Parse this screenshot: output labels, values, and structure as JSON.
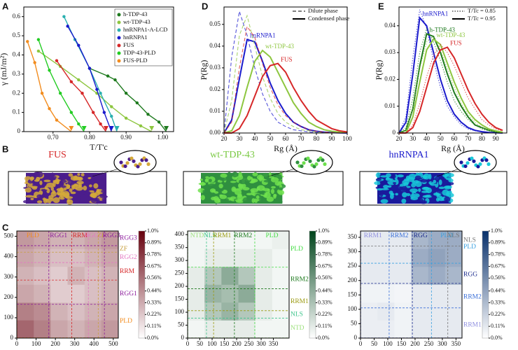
{
  "chart_data": [
    {
      "type": "scatter",
      "panel": "A",
      "xlabel": "T/T'c",
      "ylabel": "γ (mJ/m²)",
      "xlim": [
        0.62,
        1.03
      ],
      "xticks": [
        {
          "value": 0.7,
          "label": "0.70"
        },
        {
          "value": 0.8,
          "label": "0.80"
        },
        {
          "value": 0.9,
          "label": "0.90"
        },
        {
          "value": 1.0,
          "label": "1.00"
        }
      ],
      "ylim": [
        0,
        0.65
      ],
      "yticks": [
        0,
        0.1,
        0.2,
        0.3,
        0.4,
        0.5,
        0.6
      ],
      "series": [
        {
          "name": "h-TDP-43",
          "color": "#1e7a1e",
          "x": [
            0.8,
            0.85,
            0.87,
            0.9,
            0.93,
            0.96,
            0.99
          ],
          "values": [
            0.33,
            0.29,
            0.27,
            0.2,
            0.15,
            0.09,
            0.05
          ],
          "tc": 1.01
        },
        {
          "name": "wt-TDP-43",
          "color": "#8dc63f",
          "x": [
            0.66,
            0.72,
            0.77,
            0.82,
            0.86,
            0.9,
            0.94
          ],
          "values": [
            0.42,
            0.34,
            0.27,
            0.2,
            0.13,
            0.07,
            0.03
          ],
          "tc": 0.97
        },
        {
          "name": "hnRNPA1-A-LCD",
          "color": "#2ab0b0",
          "x": [
            0.73,
            0.76,
            0.8,
            0.83,
            0.86
          ],
          "values": [
            0.6,
            0.48,
            0.33,
            0.2,
            0.08
          ],
          "tc": 0.875
        },
        {
          "name": "hnRNPA1",
          "color": "#1a1acc",
          "x": [
            0.74,
            0.77,
            0.8,
            0.82,
            0.84
          ],
          "values": [
            0.55,
            0.45,
            0.33,
            0.22,
            0.1
          ],
          "tc": 0.86
        },
        {
          "name": "FUS",
          "color": "#d62728",
          "x": [
            0.71,
            0.75,
            0.78,
            0.81,
            0.83
          ],
          "values": [
            0.37,
            0.26,
            0.2,
            0.1,
            0.04
          ],
          "tc": 0.845
        },
        {
          "name": "TDP-43-PLD",
          "color": "#22cc22",
          "x": [
            0.66,
            0.69,
            0.72,
            0.75,
            0.77
          ],
          "values": [
            0.48,
            0.32,
            0.2,
            0.1,
            0.04
          ],
          "tc": 0.785
        },
        {
          "name": "FUS-PLD",
          "color": "#f28c1e",
          "x": [
            0.63,
            0.65,
            0.67,
            0.69,
            0.71
          ],
          "values": [
            0.47,
            0.36,
            0.2,
            0.12,
            0.06
          ],
          "tc": 0.75
        }
      ]
    },
    {
      "type": "line",
      "panel": "D",
      "xlabel": "Rg (Å)",
      "ylabel": "P(Rg)",
      "alt_style": "dashed",
      "legend": [
        "Dilute phase",
        "Condensed phase"
      ],
      "xlim": [
        20,
        100
      ],
      "xticks": [
        20,
        30,
        40,
        50,
        60,
        70,
        80,
        90,
        100
      ],
      "ylim": [
        0,
        0.058
      ],
      "yticks": [
        {
          "value": 0,
          "label": "0.00"
        },
        0.01,
        0.02,
        0.03,
        0.04,
        0.05
      ],
      "x": [
        20,
        25,
        30,
        35,
        40,
        45,
        50,
        55,
        60,
        65,
        70,
        75,
        80,
        85,
        90,
        95,
        100
      ],
      "series": [
        {
          "name": "hnRNPA1",
          "color": "#1a1acc",
          "values": [
            0,
            0.006,
            0.025,
            0.043,
            0.042,
            0.033,
            0.023,
            0.015,
            0.009,
            0.005,
            0.003,
            0.0015,
            0.0008,
            0.0004,
            0.0002,
            0.0001,
            0
          ],
          "alt_values": [
            0,
            0.035,
            0.056,
            0.045,
            0.03,
            0.018,
            0.01,
            0.005,
            0.003,
            0.0015,
            0.001,
            0.0005,
            0.0002,
            0.0001,
            0,
            0,
            0
          ]
        },
        {
          "name": "wt-TDP-43",
          "color": "#8dc63f",
          "values": [
            0,
            0.001,
            0.008,
            0.021,
            0.033,
            0.038,
            0.035,
            0.028,
            0.021,
            0.014,
            0.009,
            0.005,
            0.003,
            0.0015,
            0.0008,
            0.0004,
            0.0002
          ],
          "alt_values": [
            0,
            0.015,
            0.045,
            0.054,
            0.04,
            0.026,
            0.016,
            0.009,
            0.005,
            0.003,
            0.0015,
            0.001,
            0.0005,
            0.0002,
            0.0001,
            0,
            0
          ]
        },
        {
          "name": "FUS",
          "color": "#d62728",
          "values": [
            0,
            0,
            0.002,
            0.008,
            0.017,
            0.026,
            0.031,
            0.032,
            0.028,
            0.021,
            0.015,
            0.01,
            0.006,
            0.004,
            0.002,
            0.001,
            0.0005
          ],
          "alt_values": [
            0,
            0.005,
            0.03,
            0.049,
            0.044,
            0.032,
            0.021,
            0.013,
            0.008,
            0.005,
            0.003,
            0.0015,
            0.0008,
            0.0004,
            0.0002,
            0.0001,
            0
          ]
        }
      ]
    },
    {
      "type": "line",
      "panel": "E",
      "xlabel": "Rg (Å)",
      "ylabel": "P(Rg)",
      "alt_style": "dotted",
      "legend": [
        "T/Tc = 0.85",
        "T/Tc = 0.95"
      ],
      "xlim": [
        20,
        98
      ],
      "xticks": [
        20,
        30,
        40,
        50,
        60,
        70,
        80,
        90
      ],
      "ylim": [
        0,
        0.047
      ],
      "yticks": [
        0,
        0.01,
        0.02,
        0.03,
        0.04
      ],
      "x": [
        20,
        25,
        30,
        35,
        40,
        45,
        50,
        55,
        60,
        65,
        70,
        75,
        80,
        85,
        90,
        95
      ],
      "series": [
        {
          "name": "hnRNPA1",
          "color": "#1a1acc",
          "values": [
            0,
            0.004,
            0.022,
            0.043,
            0.04,
            0.03,
            0.02,
            0.012,
            0.007,
            0.004,
            0.002,
            0.001,
            0.0005,
            0.0002,
            0.0001,
            0
          ],
          "alt_values": [
            0,
            0.006,
            0.028,
            0.046,
            0.039,
            0.027,
            0.017,
            0.01,
            0.006,
            0.003,
            0.0015,
            0.0008,
            0.0004,
            0.0002,
            0.0001,
            0
          ]
        },
        {
          "name": "h-TDP-43",
          "color": "#1e7a1e",
          "values": [
            0,
            0.001,
            0.009,
            0.025,
            0.037,
            0.036,
            0.03,
            0.022,
            0.015,
            0.01,
            0.006,
            0.003,
            0.002,
            0.001,
            0.0005,
            0.0002
          ],
          "alt_values": [
            0,
            0.002,
            0.013,
            0.03,
            0.039,
            0.034,
            0.027,
            0.019,
            0.012,
            0.008,
            0.005,
            0.003,
            0.0015,
            0.0008,
            0.0004,
            0.0002
          ]
        },
        {
          "name": "wt-TDP-43",
          "color": "#8dc63f",
          "values": [
            0,
            0,
            0.006,
            0.019,
            0.031,
            0.035,
            0.033,
            0.026,
            0.019,
            0.013,
            0.008,
            0.005,
            0.003,
            0.0015,
            0.0008,
            0.0003
          ],
          "alt_values": [
            0,
            0.001,
            0.009,
            0.024,
            0.034,
            0.036,
            0.031,
            0.024,
            0.017,
            0.011,
            0.007,
            0.004,
            0.002,
            0.001,
            0.0005,
            0.0002
          ]
        },
        {
          "name": "FUS",
          "color": "#d62728",
          "values": [
            0,
            0,
            0.002,
            0.008,
            0.017,
            0.026,
            0.031,
            0.032,
            0.028,
            0.022,
            0.016,
            0.011,
            0.007,
            0.004,
            0.002,
            0.001
          ],
          "alt_values": [
            0,
            0,
            0.003,
            0.011,
            0.021,
            0.029,
            0.033,
            0.03,
            0.025,
            0.019,
            0.013,
            0.009,
            0.005,
            0.003,
            0.0015,
            0.0008
          ]
        }
      ]
    },
    {
      "type": "heatmap",
      "panel": "C",
      "cmap": [
        "#ffffff",
        "#67000d"
      ],
      "xlim": [
        0,
        526
      ],
      "ylim": [
        0,
        526
      ],
      "xticks": [
        0,
        100,
        200,
        300,
        400,
        500
      ],
      "yticks": [
        0,
        100,
        200,
        300,
        400,
        500
      ],
      "bins": [
        0,
        88,
        175,
        263,
        351,
        438,
        526
      ],
      "values": [
        [
          0.6,
          0.5,
          0.35,
          0.3,
          0.35,
          0.4
        ],
        [
          0.5,
          0.45,
          0.3,
          0.25,
          0.3,
          0.35
        ],
        [
          0.35,
          0.3,
          0.2,
          0.2,
          0.25,
          0.3
        ],
        [
          0.3,
          0.25,
          0.2,
          0.3,
          0.25,
          0.3
        ],
        [
          0.35,
          0.3,
          0.25,
          0.25,
          0.3,
          0.35
        ],
        [
          0.4,
          0.35,
          0.3,
          0.3,
          0.35,
          0.4
        ]
      ],
      "zlim": [
        0,
        1.0
      ],
      "zticks": [
        {
          "value": 0,
          "label": "0.0%"
        },
        {
          "value": 0.11,
          "label": "0.11%"
        },
        {
          "value": 0.22,
          "label": "0.22%"
        },
        {
          "value": 0.33,
          "label": "0.33%"
        },
        {
          "value": 0.44,
          "label": "0.44%"
        },
        {
          "value": 0.56,
          "label": "0.56%"
        },
        {
          "value": 0.67,
          "label": "0.67%"
        },
        {
          "value": 0.78,
          "label": "0.78%"
        },
        {
          "value": 0.89,
          "label": "0.89%"
        },
        {
          "value": 1.0,
          "label": "1.0%"
        }
      ],
      "domains": [
        {
          "label": "PLD",
          "start": 1,
          "end": 165,
          "color": "#f28c1e"
        },
        {
          "label": "RGG1",
          "start": 166,
          "end": 267,
          "color": "#8b1a9b"
        },
        {
          "label": "RRM",
          "start": 285,
          "end": 370,
          "color": "#d62728"
        },
        {
          "label": "RGG2",
          "start": 371,
          "end": 421,
          "color": "#e377c2"
        },
        {
          "label": "ZF",
          "start": 422,
          "end": 453,
          "color": "#c8a040"
        },
        {
          "label": "RGG3",
          "start": 454,
          "end": 526,
          "color": "#8b1a9b"
        }
      ]
    },
    {
      "type": "heatmap",
      "cmap": [
        "#ffffff",
        "#00441b"
      ],
      "xlim": [
        0,
        414
      ],
      "ylim": [
        0,
        414
      ],
      "xticks": [
        0,
        50,
        100,
        150,
        200,
        250,
        300,
        350
      ],
      "yticks": [
        0,
        50,
        100,
        150,
        200,
        250,
        300,
        350,
        400
      ],
      "bins": [
        0,
        69,
        138,
        207,
        276,
        345,
        414
      ],
      "values": [
        [
          0.05,
          0.1,
          0.1,
          0.1,
          0.05,
          0.05
        ],
        [
          0.1,
          0.3,
          0.4,
          0.3,
          0.1,
          0.05
        ],
        [
          0.1,
          0.4,
          0.35,
          0.45,
          0.1,
          0.05
        ],
        [
          0.1,
          0.3,
          0.45,
          0.3,
          0.1,
          0.05
        ],
        [
          0.05,
          0.1,
          0.1,
          0.1,
          0.1,
          0.05
        ],
        [
          0.05,
          0.05,
          0.05,
          0.05,
          0.05,
          0.08
        ]
      ],
      "zlim": [
        0,
        1.0
      ],
      "zticks": [
        {
          "value": 0,
          "label": "0.0%"
        },
        {
          "value": 0.11,
          "label": "0.11%"
        },
        {
          "value": 0.22,
          "label": "0.22%"
        },
        {
          "value": 0.33,
          "label": "0.33%"
        },
        {
          "value": 0.44,
          "label": "0.44%"
        },
        {
          "value": 0.56,
          "label": "0.56%"
        },
        {
          "value": 0.67,
          "label": "0.67%"
        },
        {
          "value": 0.78,
          "label": "0.78%"
        },
        {
          "value": 0.89,
          "label": "0.89%"
        },
        {
          "value": 1.0,
          "label": "1.0%"
        }
      ],
      "domains": [
        {
          "label": "NTD",
          "start": 1,
          "end": 76,
          "color": "#9be07a"
        },
        {
          "label": "NLS",
          "start": 77,
          "end": 105,
          "color": "#3cc48a"
        },
        {
          "label": "RRM1",
          "start": 106,
          "end": 176,
          "color": "#9a9a10"
        },
        {
          "label": "RRM2",
          "start": 191,
          "end": 262,
          "color": "#1e7a1e"
        },
        {
          "label": "PLD",
          "start": 274,
          "end": 414,
          "color": "#44dd44"
        }
      ]
    },
    {
      "type": "heatmap",
      "cmap": [
        "#ffffff",
        "#08306b"
      ],
      "xlim": [
        0,
        372
      ],
      "ylim": [
        0,
        372
      ],
      "xticks": [
        0,
        50,
        100,
        150,
        200,
        250,
        300,
        350
      ],
      "yticks": [
        0,
        50,
        100,
        150,
        200,
        250,
        300,
        350
      ],
      "bins": [
        0,
        62,
        124,
        186,
        248,
        310,
        372
      ],
      "values": [
        [
          0.08,
          0.08,
          0.06,
          0.1,
          0.1,
          0.1
        ],
        [
          0.08,
          0.1,
          0.06,
          0.1,
          0.1,
          0.1
        ],
        [
          0.06,
          0.06,
          0.05,
          0.1,
          0.1,
          0.1
        ],
        [
          0.1,
          0.1,
          0.1,
          0.35,
          0.4,
          0.35
        ],
        [
          0.1,
          0.1,
          0.1,
          0.4,
          0.45,
          0.4
        ],
        [
          0.1,
          0.1,
          0.1,
          0.35,
          0.4,
          0.4
        ]
      ],
      "zlim": [
        0,
        1.0
      ],
      "zticks": [
        {
          "value": 0,
          "label": "0.0%"
        },
        {
          "value": 0.11,
          "label": "0.11%"
        },
        {
          "value": 0.22,
          "label": "0.22%"
        },
        {
          "value": 0.33,
          "label": "0.33%"
        },
        {
          "value": 0.44,
          "label": "0.44%"
        },
        {
          "value": 0.56,
          "label": "0.56%"
        },
        {
          "value": 0.67,
          "label": "0.67%"
        },
        {
          "value": 0.78,
          "label": "0.78%"
        },
        {
          "value": 0.89,
          "label": "0.89%"
        },
        {
          "value": 1.0,
          "label": "1.0%"
        }
      ],
      "domains": [
        {
          "label": "RRM1",
          "start": 1,
          "end": 90,
          "color": "#8f8fe0"
        },
        {
          "label": "RRM2",
          "start": 105,
          "end": 180,
          "color": "#3a6fd8"
        },
        {
          "label": "RGG",
          "start": 190,
          "end": 250,
          "color": "#1a2a8c"
        },
        {
          "label": "PLD",
          "start": 260,
          "end": 372,
          "color": "#3aa0e0"
        },
        {
          "label": "NLS",
          "start": 320,
          "end": 360,
          "color": "#777777"
        }
      ]
    }
  ],
  "snapshots": {
    "panel": "B",
    "labels": [
      "FUS",
      "wt-TDP-43",
      "hnRNPA1"
    ],
    "colors": [
      "#d62728",
      "#7ac943",
      "#1a1acc"
    ]
  }
}
